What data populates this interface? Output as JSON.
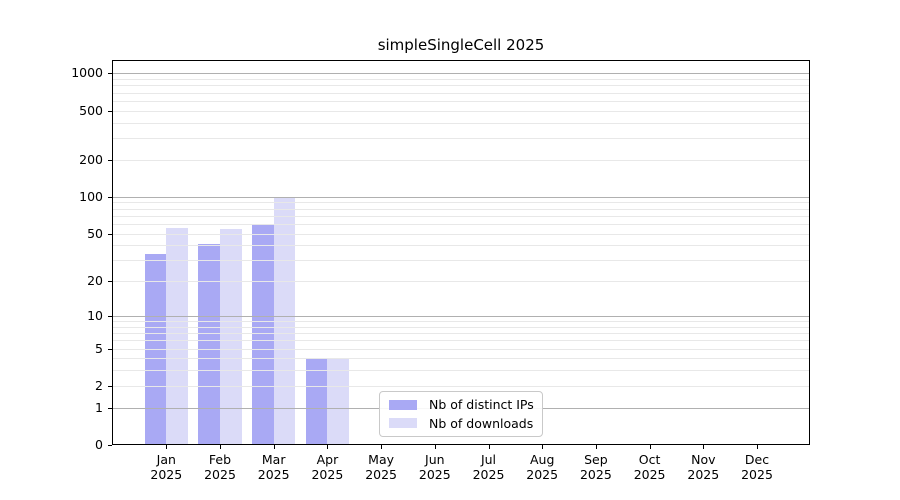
{
  "chart_data": {
    "type": "bar",
    "title": "simpleSingleCell 2025",
    "categories": [
      "Jan 2025",
      "Feb 2025",
      "Mar 2025",
      "Apr 2025",
      "May 2025",
      "Jun 2025",
      "Jul 2025",
      "Aug 2025",
      "Sep 2025",
      "Oct 2025",
      "Nov 2025",
      "Dec 2025"
    ],
    "series": [
      {
        "name": "Nb of distinct IPs",
        "color": "#a9a9f4",
        "values": [
          34,
          41,
          59,
          4,
          0,
          0,
          0,
          0,
          0,
          0,
          0,
          0
        ]
      },
      {
        "name": "Nb of downloads",
        "color": "#dbdbf8",
        "values": [
          56,
          54,
          100,
          4,
          0,
          0,
          0,
          0,
          0,
          0,
          0,
          0
        ]
      }
    ],
    "xlabel": "",
    "ylabel": "",
    "yscale": "log1p",
    "yticks": [
      0,
      1,
      2,
      5,
      10,
      20,
      50,
      100,
      200,
      500,
      1000
    ],
    "ylim": [
      0,
      1283
    ],
    "grid": true,
    "legend": {
      "position": "lower center inside",
      "entries": [
        "Nb of distinct IPs",
        "Nb of downloads"
      ]
    },
    "colors": {
      "major_grid": "#b0b0b0",
      "minor_grid": "#e8e8e8",
      "axis": "#000000",
      "background": "#ffffff",
      "text": "#000000"
    }
  }
}
